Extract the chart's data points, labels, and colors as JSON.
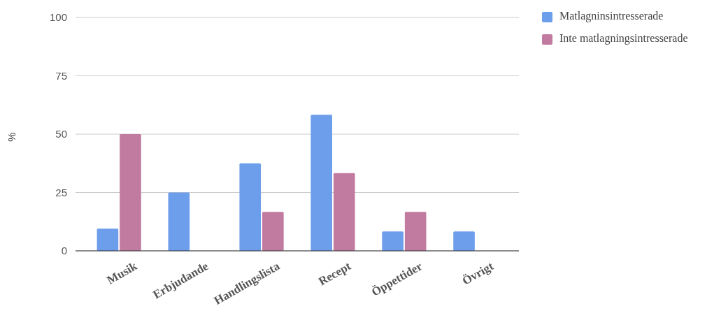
{
  "chart_data": {
    "type": "bar",
    "ylabel": "%",
    "categories": [
      "Musik",
      "Erbjudande",
      "Handlingslista",
      "Recept",
      "Öppettider",
      "Övrigt"
    ],
    "series": [
      {
        "name": "Matlagninsintresserade",
        "color": "#6d9eeb",
        "values": [
          9.5,
          25,
          37.5,
          58.3,
          8.3,
          8.3
        ]
      },
      {
        "name": "Inte matlagningsintresserade",
        "color": "#c27ba0",
        "values": [
          50,
          0,
          16.7,
          33.3,
          16.7,
          0
        ]
      }
    ],
    "ylim": [
      0,
      100
    ],
    "yticks": [
      0,
      25,
      50,
      75,
      100
    ],
    "grid": "y",
    "legend": "right"
  }
}
